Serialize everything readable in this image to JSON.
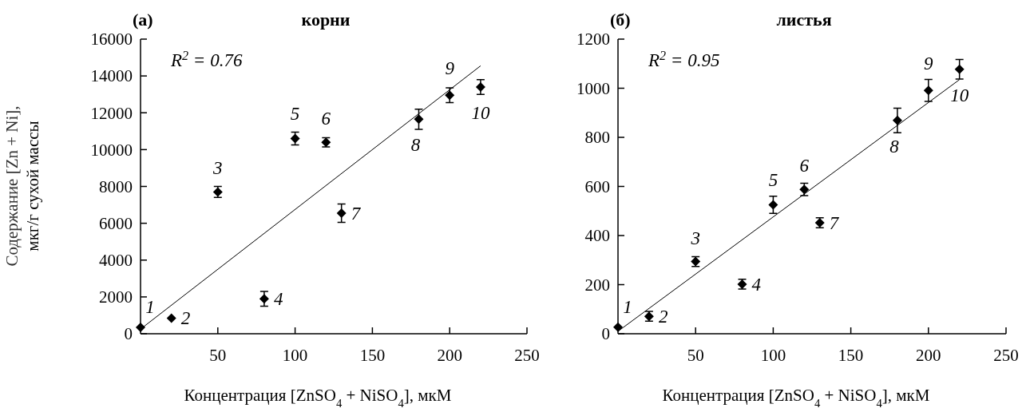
{
  "chart_data": [
    {
      "type": "scatter",
      "title": "корни",
      "xlabel": "Концентрация [ZnSO$_{4}$ + NiSO$_{4}$], мкМ",
      "ylabel": "Содержание [Zn + Ni],\nмкг/г сухой массы",
      "xlim": [
        0,
        250
      ],
      "xticks": [
        50,
        100,
        150,
        200,
        250
      ],
      "ylim": [
        0,
        16000
      ],
      "yticks": [
        0,
        2000,
        4000,
        6000,
        8000,
        10000,
        12000,
        14000,
        16000
      ],
      "grid": false,
      "series": [
        {
          "color": "#000000",
          "marker": "diamond",
          "x": [
            0,
            20,
            50,
            80,
            100,
            120,
            130,
            180,
            200,
            220
          ],
          "values": [
            350,
            850,
            7700,
            1900,
            10600,
            10400,
            6550,
            11650,
            12950,
            13400
          ],
          "errors": [
            null,
            null,
            300,
            400,
            350,
            250,
            500,
            550,
            400,
            400
          ]
        },
        {
          "type": "line",
          "color": "#000000",
          "x": [
            0,
            220
          ],
          "values": [
            250,
            14550
          ]
        }
      ],
      "annotations": [
        "(а)",
        "R$^{2}$ = 0.76",
        {
          "text": "1",
          "x": 0,
          "y": 350
        },
        {
          "text": "2",
          "x": 20,
          "y": 850
        },
        {
          "text": "3",
          "x": 50,
          "y": 7700
        },
        {
          "text": "4",
          "x": 80,
          "y": 1900
        },
        {
          "text": "5",
          "x": 100,
          "y": 10600
        },
        {
          "text": "6",
          "x": 120,
          "y": 10400
        },
        {
          "text": "7",
          "x": 130,
          "y": 6550
        },
        {
          "text": "8",
          "x": 180,
          "y": 11650
        },
        {
          "text": "9",
          "x": 200,
          "y": 12950
        },
        {
          "text": "10",
          "x": 220,
          "y": 13400
        }
      ]
    },
    {
      "type": "scatter",
      "title": "листья",
      "xlabel": "Концентрация [ZnSO$_{4}$ + NiSO$_{4}$], мкМ",
      "xlim": [
        0,
        250
      ],
      "xticks": [
        50,
        100,
        150,
        200,
        250
      ],
      "ylim": [
        0,
        1200
      ],
      "yticks": [
        0,
        200,
        400,
        600,
        800,
        1000,
        1200
      ],
      "grid": false,
      "series": [
        {
          "color": "#000000",
          "marker": "diamond",
          "x": [
            0,
            20,
            50,
            80,
            100,
            120,
            130,
            180,
            200,
            220
          ],
          "values": [
            27,
            71,
            294,
            202,
            525,
            588,
            452,
            869,
            991,
            1077
          ],
          "errors": [
            null,
            20,
            20,
            20,
            35,
            25,
            20,
            50,
            45,
            40
          ]
        },
        {
          "type": "line",
          "color": "#000000",
          "x": [
            0,
            220
          ],
          "values": [
            10,
            1035
          ]
        }
      ],
      "annotations": [
        "(б)",
        "R$^{2}$ = 0.95",
        {
          "text": "1",
          "x": 0,
          "y": 27
        },
        {
          "text": "2",
          "x": 20,
          "y": 71
        },
        {
          "text": "3",
          "x": 50,
          "y": 294
        },
        {
          "text": "4",
          "x": 80,
          "y": 202
        },
        {
          "text": "5",
          "x": 100,
          "y": 525
        },
        {
          "text": "6",
          "x": 120,
          "y": 588
        },
        {
          "text": "7",
          "x": 130,
          "y": 452
        },
        {
          "text": "8",
          "x": 180,
          "y": 869
        },
        {
          "text": "9",
          "x": 200,
          "y": 991
        },
        {
          "text": "10",
          "x": 220,
          "y": 1077
        }
      ]
    }
  ]
}
